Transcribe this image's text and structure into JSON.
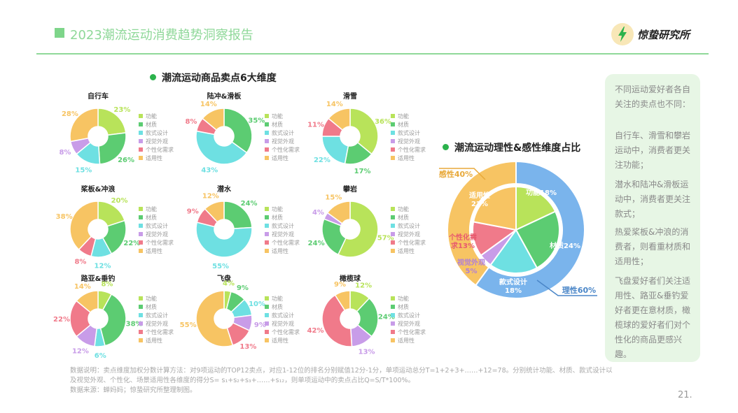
{
  "header": {
    "title": "2023潮流运动消费趋势洞察报告",
    "brand": "惊蛰研究所",
    "page": "21."
  },
  "colors": {
    "功能": "#b8e35a",
    "材质": "#5ccc72",
    "款式设计": "#6ee0e2",
    "视觉外观": "#c89ce8",
    "个性化需求": "#f07a8a",
    "适用性": "#f7c463",
    "理性": "#7ab4ec",
    "感性": "#f7c463",
    "accent": "#2bb24c"
  },
  "section_left_title": "潮流运动商品卖点6大维度",
  "section_right_title": "潮流运动理性&感性维度占比",
  "legend_labels": [
    "功能",
    "材质",
    "款式设计",
    "视觉外观",
    "个性化需求",
    "适用性"
  ],
  "chart_data": [
    {
      "type": "pie",
      "title": "自行车",
      "categories": [
        "功能",
        "材质",
        "款式设计",
        "视觉外观",
        "个性化需求",
        "适用性"
      ],
      "values": [
        23,
        26,
        15,
        8,
        0,
        28
      ],
      "labels": [
        "23%",
        "26%",
        "15%",
        "8%",
        "",
        "28%"
      ]
    },
    {
      "type": "pie",
      "title": "陆冲&滑板",
      "categories": [
        "功能",
        "材质",
        "款式设计",
        "视觉外观",
        "个性化需求",
        "适用性"
      ],
      "values": [
        0,
        35,
        43,
        0,
        8,
        14
      ],
      "labels": [
        "",
        "35%",
        "43%",
        "",
        "8%",
        "14%"
      ]
    },
    {
      "type": "pie",
      "title": "滑雪",
      "categories": [
        "功能",
        "材质",
        "款式设计",
        "视觉外观",
        "个性化需求",
        "适用性"
      ],
      "values": [
        36,
        17,
        22,
        0,
        11,
        14
      ],
      "labels": [
        "36%",
        "17%",
        "22%",
        "",
        "11%",
        "14%"
      ]
    },
    {
      "type": "pie",
      "title": "桨板&冲浪",
      "categories": [
        "功能",
        "材质",
        "款式设计",
        "视觉外观",
        "个性化需求",
        "适用性"
      ],
      "values": [
        20,
        22,
        12,
        0,
        8,
        38
      ],
      "labels": [
        "20%",
        "22%",
        "12%",
        "",
        "8%",
        "38%"
      ]
    },
    {
      "type": "pie",
      "title": "潜水",
      "categories": [
        "功能",
        "材质",
        "款式设计",
        "视觉外观",
        "个性化需求",
        "适用性"
      ],
      "values": [
        0,
        24,
        55,
        0,
        9,
        12
      ],
      "labels": [
        "",
        "24%",
        "55%",
        "",
        "9%",
        "12%"
      ]
    },
    {
      "type": "pie",
      "title": "攀岩",
      "categories": [
        "功能",
        "材质",
        "款式设计",
        "视觉外观",
        "个性化需求",
        "适用性"
      ],
      "values": [
        57,
        24,
        0,
        4,
        0,
        15
      ],
      "labels": [
        "57%",
        "24%",
        "",
        "4%",
        "",
        "15%"
      ]
    },
    {
      "type": "pie",
      "title": "路亚&垂钓",
      "categories": [
        "功能",
        "材质",
        "款式设计",
        "视觉外观",
        "个性化需求",
        "适用性"
      ],
      "values": [
        8,
        38,
        6,
        12,
        22,
        14
      ],
      "labels": [
        "8%",
        "38%",
        "6%",
        "12%",
        "22%",
        "14%"
      ]
    },
    {
      "type": "pie",
      "title": "飞盘",
      "categories": [
        "功能",
        "材质",
        "款式设计",
        "视觉外观",
        "个性化需求",
        "适用性"
      ],
      "values": [
        4,
        9,
        10,
        9,
        13,
        55
      ],
      "labels": [
        "4%",
        "9%",
        "10%",
        "9%",
        "13%",
        "55%"
      ]
    },
    {
      "type": "pie",
      "title": "橄榄球",
      "categories": [
        "功能",
        "材质",
        "款式设计",
        "视觉外观",
        "个性化需求",
        "适用性"
      ],
      "values": [
        12,
        24,
        0,
        13,
        42,
        9
      ],
      "labels": [
        "12%",
        "24%",
        "",
        "13%",
        "42%",
        "9%"
      ]
    },
    {
      "type": "pie",
      "title": "潮流运动理性&感性维度占比",
      "outer": {
        "categories": [
          "理性",
          "感性"
        ],
        "values": [
          60,
          40
        ],
        "labels": [
          "理性60%",
          "感性40%"
        ]
      },
      "inner": {
        "categories": [
          "功能",
          "材质",
          "款式设计",
          "视觉外观",
          "个性化需求",
          "适用性"
        ],
        "values": [
          18,
          24,
          18,
          5,
          13,
          22
        ],
        "labels": [
          "功能18%",
          "材质24%",
          "款式设计\n18%",
          "视觉外观\n5%",
          "个性化需\n求13%",
          "适用性\n22%"
        ]
      }
    }
  ],
  "notes": [
    "不同运动爱好者各自关注的卖点也不同：",
    "自行车、滑雪和攀岩运动中，消费者更关注功能；",
    "潜水和陆冲&滑板运动中，消费者更关注款式；",
    "热爱桨板&冲浪的消费者，则看重材质和适用性；",
    "飞盘爱好者们关注适用性、路亚&垂钓爱好者更在意材质，橄榄球的爱好者们对个性化的商品更感兴趣。"
  ],
  "footnote": {
    "line1": "数据说明：卖点维度加权分数计算方法：对9项运动的TOP12卖点，对应1-12位的排名分别赋值12分-1分，单项运动总分T=1+2+3+……+12=78。分别统计功能、材质、款式设计以",
    "line2": "及视觉外观、个性化、场景适用性各维度的得分S= s₁+s₂+s₃+……+s₁₂，则单项运动中的卖点占比Q=S/T*100%。",
    "line3": "数据来源：蝉妈妈；惊蛰研究所整理制图。"
  }
}
